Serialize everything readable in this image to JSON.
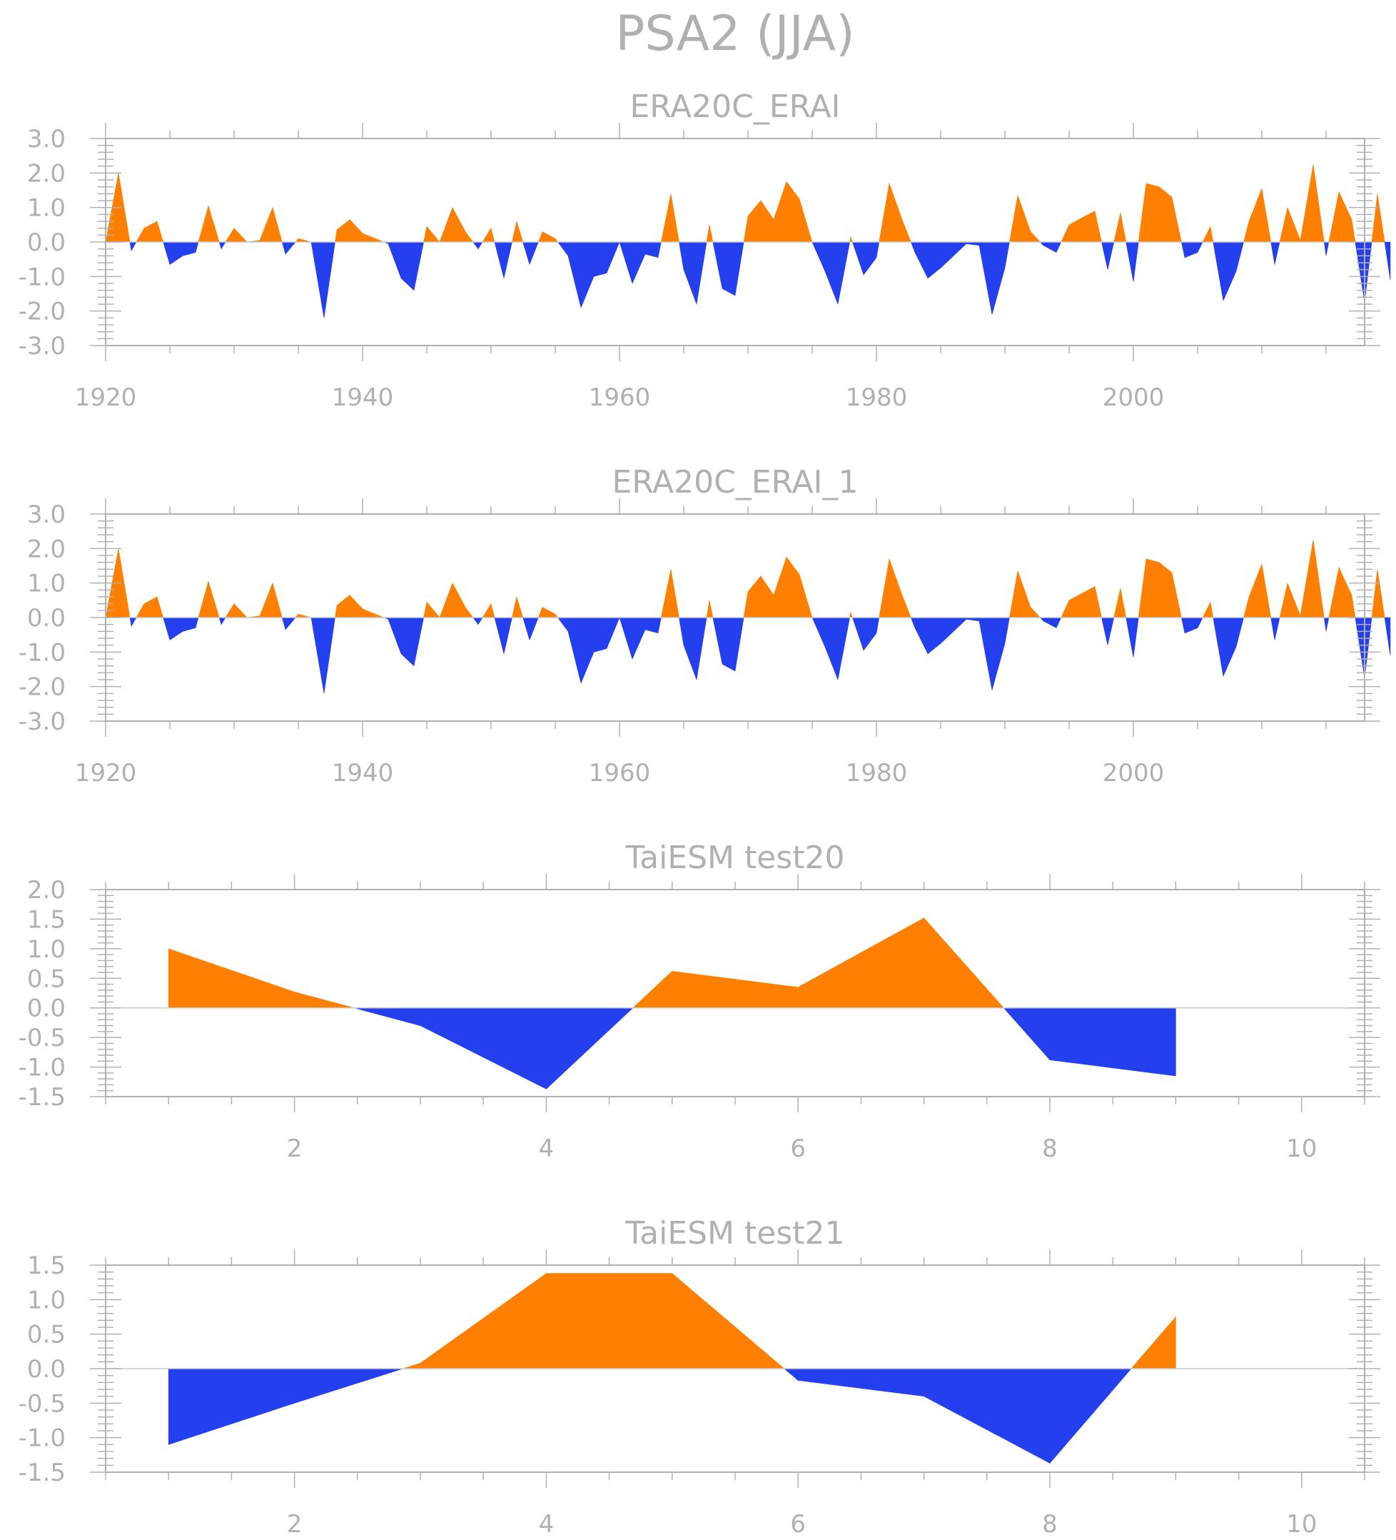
{
  "title": "PSA2 (JJA)",
  "colors": {
    "positive": "#FF7F00",
    "negative": "#2440EE",
    "axis": "#b0b0b0",
    "zero_line": "#c8c8c8"
  },
  "chart_data": [
    {
      "type": "area",
      "title": "ERA20C_ERAI",
      "xlim": [
        1920,
        2018
      ],
      "ylim": [
        -3.0,
        3.0
      ],
      "yticks": [
        3.0,
        2.0,
        1.0,
        0.0,
        -1.0,
        -2.0,
        -3.0
      ],
      "ytick_labels": [
        "3.0",
        "2.0",
        "1.0",
        "0.0",
        "-1.0",
        "-2.0",
        "-3.0"
      ],
      "xticks": [
        1920,
        1940,
        1960,
        1980,
        2000
      ],
      "xtick_labels": [
        "1920",
        "1940",
        "1960",
        "1980",
        "2000"
      ],
      "x_start": 1920,
      "values": [
        0.0,
        2.0,
        -0.25,
        0.4,
        0.6,
        -0.65,
        -0.4,
        -0.3,
        1.05,
        -0.2,
        0.4,
        0.0,
        0.05,
        1.0,
        -0.35,
        0.1,
        0.0,
        -2.2,
        0.35,
        0.65,
        0.25,
        0.1,
        -0.05,
        -1.05,
        -1.4,
        0.45,
        0.0,
        1.0,
        0.3,
        -0.2,
        0.4,
        -1.05,
        0.6,
        -0.65,
        0.3,
        0.1,
        -0.4,
        -1.9,
        -1.0,
        -0.9,
        0.0,
        -1.2,
        -0.35,
        -0.45,
        1.4,
        -0.8,
        -1.8,
        0.5,
        -1.35,
        -1.55,
        0.75,
        1.2,
        0.65,
        1.75,
        1.25,
        0.0,
        -0.85,
        -1.8,
        0.15,
        -0.95,
        -0.45,
        1.7,
        0.65,
        -0.3,
        -1.05,
        -0.75,
        -0.4,
        -0.05,
        -0.1,
        -2.1,
        -0.75,
        1.35,
        0.3,
        -0.1,
        -0.3,
        0.5,
        0.7,
        0.9,
        -0.8,
        0.85,
        -1.15,
        1.7,
        1.6,
        1.3,
        -0.45,
        -0.3,
        0.45,
        -1.7,
        -0.85,
        0.6,
        1.55,
        -0.65,
        1.0,
        0.05,
        2.25,
        -0.4,
        1.45,
        0.65,
        -1.75,
        1.4,
        -1.1
      ]
    },
    {
      "type": "area",
      "title": "ERA20C_ERAI_1",
      "xlim": [
        1920,
        2018
      ],
      "ylim": [
        -3.0,
        3.0
      ],
      "yticks": [
        3.0,
        2.0,
        1.0,
        0.0,
        -1.0,
        -2.0,
        -3.0
      ],
      "ytick_labels": [
        "3.0",
        "2.0",
        "1.0",
        "0.0",
        "-1.0",
        "-2.0",
        "-3.0"
      ],
      "xticks": [
        1920,
        1940,
        1960,
        1980,
        2000
      ],
      "xtick_labels": [
        "1920",
        "1940",
        "1960",
        "1980",
        "2000"
      ],
      "x_start": 1920,
      "values": [
        0.0,
        2.0,
        -0.25,
        0.4,
        0.6,
        -0.65,
        -0.4,
        -0.3,
        1.05,
        -0.2,
        0.4,
        0.0,
        0.05,
        1.0,
        -0.35,
        0.1,
        0.0,
        -2.2,
        0.35,
        0.65,
        0.25,
        0.1,
        -0.05,
        -1.05,
        -1.4,
        0.45,
        0.0,
        1.0,
        0.3,
        -0.2,
        0.4,
        -1.05,
        0.6,
        -0.65,
        0.3,
        0.1,
        -0.4,
        -1.9,
        -1.0,
        -0.9,
        0.0,
        -1.2,
        -0.35,
        -0.45,
        1.4,
        -0.8,
        -1.8,
        0.5,
        -1.35,
        -1.55,
        0.75,
        1.2,
        0.65,
        1.75,
        1.25,
        0.0,
        -0.85,
        -1.8,
        0.15,
        -0.95,
        -0.45,
        1.7,
        0.65,
        -0.3,
        -1.05,
        -0.75,
        -0.4,
        -0.05,
        -0.1,
        -2.1,
        -0.75,
        1.35,
        0.3,
        -0.1,
        -0.3,
        0.5,
        0.7,
        0.9,
        -0.8,
        0.85,
        -1.15,
        1.7,
        1.6,
        1.3,
        -0.45,
        -0.3,
        0.45,
        -1.7,
        -0.85,
        0.6,
        1.55,
        -0.65,
        1.0,
        0.05,
        2.25,
        -0.4,
        1.45,
        0.65,
        -1.75,
        1.4,
        -1.1
      ]
    },
    {
      "type": "area",
      "title": "TaiESM test20",
      "xlim": [
        0.5,
        10.5
      ],
      "ylim": [
        -1.5,
        2.0
      ],
      "yticks": [
        2.0,
        1.5,
        1.0,
        0.5,
        0.0,
        -0.5,
        -1.0,
        -1.5
      ],
      "ytick_labels": [
        "2.0",
        "1.5",
        "1.0",
        "0.5",
        "0.0",
        "-0.5",
        "-1.0",
        "-1.5"
      ],
      "xticks": [
        2,
        4,
        6,
        8,
        10
      ],
      "xtick_labels": [
        "2",
        "4",
        "6",
        "8",
        "10"
      ],
      "x": [
        1,
        2,
        3,
        4,
        5,
        6,
        7,
        8,
        9
      ],
      "values": [
        1.0,
        0.27,
        -0.3,
        -1.37,
        0.62,
        0.35,
        1.52,
        -0.88,
        -1.15
      ]
    },
    {
      "type": "area",
      "title": "TaiESM test21",
      "xlim": [
        0.5,
        10.5
      ],
      "ylim": [
        -1.5,
        1.5
      ],
      "yticks": [
        1.5,
        1.0,
        0.5,
        0.0,
        -0.5,
        -1.0,
        -1.5
      ],
      "ytick_labels": [
        "1.5",
        "1.0",
        "0.5",
        "0.0",
        "-0.5",
        "-1.0",
        "-1.5"
      ],
      "xticks": [
        2,
        4,
        6,
        8,
        10
      ],
      "xtick_labels": [
        "2",
        "4",
        "6",
        "8",
        "10"
      ],
      "x": [
        1,
        2,
        3,
        4,
        5,
        6,
        7,
        8,
        9
      ],
      "values": [
        -1.1,
        -0.5,
        0.08,
        1.38,
        1.38,
        -0.17,
        -0.4,
        -1.37,
        0.75
      ]
    }
  ]
}
